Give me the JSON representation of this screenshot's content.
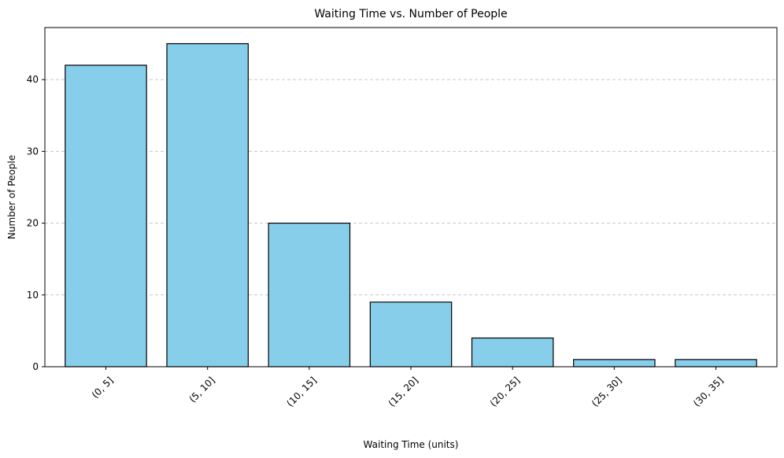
{
  "chart_data": {
    "type": "bar",
    "title": "Waiting Time vs. Number of People",
    "xlabel": "Waiting Time (units)",
    "ylabel": "Number of People",
    "categories": [
      "(0, 5]",
      "(5, 10]",
      "(10, 15]",
      "(15, 20]",
      "(20, 25]",
      "(25, 30]",
      "(30, 35]"
    ],
    "values": [
      42,
      45,
      20,
      9,
      4,
      1,
      1
    ],
    "ylim": [
      0,
      47.25
    ],
    "yticks": [
      0,
      10,
      20,
      30,
      40
    ],
    "bar_color": "#87CEEB",
    "bar_edge_color": "#000000",
    "grid": "y-axis, dashed",
    "xtick_rotation": 45
  }
}
